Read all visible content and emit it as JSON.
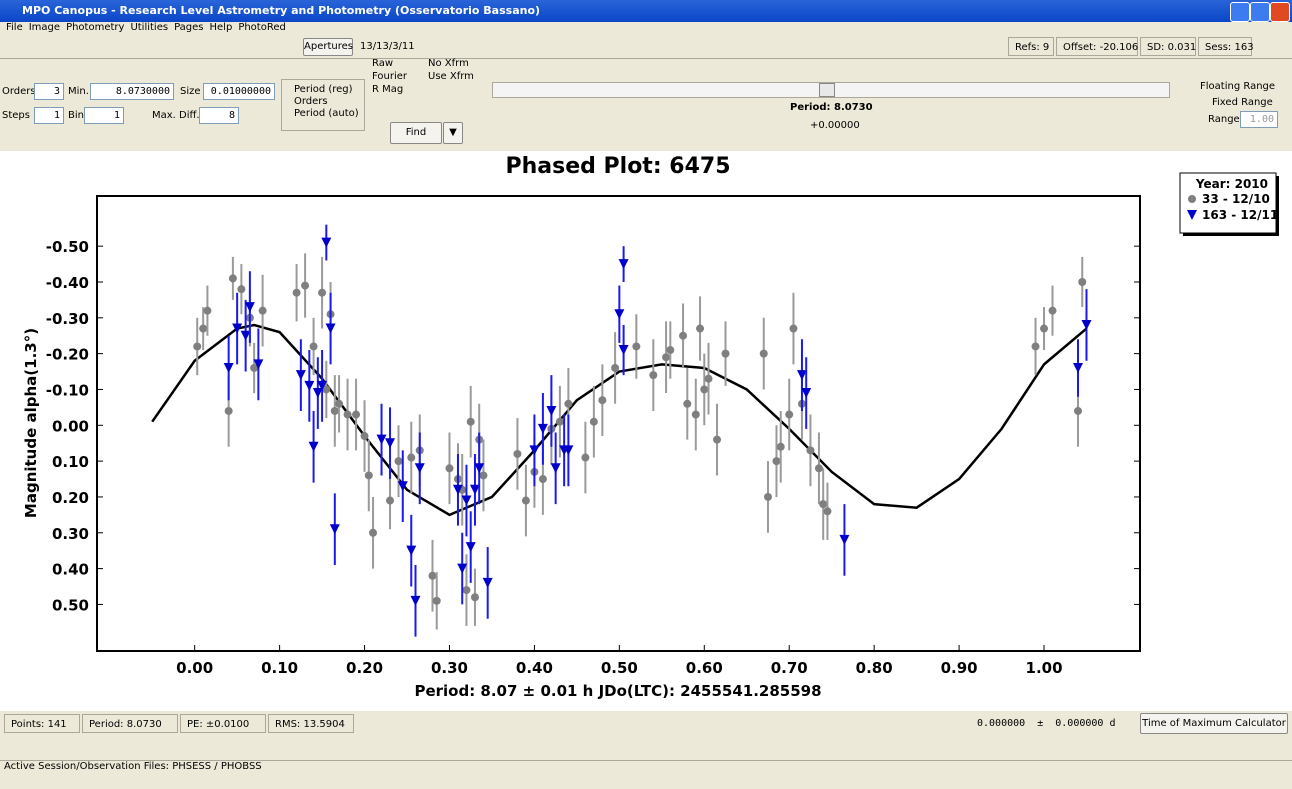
{
  "window": {
    "title": "MPO Canopus - Research Level Astrometry and Photometry (Osservatorio Bassano)"
  },
  "menu": [
    "File",
    "Image",
    "Photometry",
    "Utilities",
    "Pages",
    "Help",
    "PhotoRed"
  ],
  "toolbar": {
    "apertures": "Apertures",
    "session": "13/13/3/11",
    "refs": "Refs: 9",
    "offset": "Offset: -20.106",
    "sd": "SD: 0.031",
    "sess": "Sess: 163"
  },
  "controls": {
    "orders_label": "Orders",
    "orders": "3",
    "min_label": "Min.",
    "min": "8.0730000",
    "size_label": "Size",
    "size": "0.01000000",
    "steps_label": "Steps",
    "steps": "1",
    "bin_label": "Bin",
    "bin": "1",
    "maxdiff_label": "Max. Diff.",
    "maxdiff": "8",
    "radios": [
      "Period (reg)",
      "Orders",
      "Period (auto)"
    ],
    "raw": "Raw",
    "fourier": "Fourier",
    "rmag": "R Mag",
    "noxfrm": "No Xfrm",
    "usexfrm": "Use Xfrm",
    "find": "Find",
    "period": "Period: 8.0730",
    "offset": "+0.00000",
    "floating": "Floating Range",
    "fixed": "Fixed Range",
    "range_label": "Range",
    "range": "1.00"
  },
  "status": {
    "points": "Points: 141",
    "period": "Period: 8.0730",
    "pe": "PE: ±0.0100",
    "rms": "RMS: 13.5904",
    "tmax": "0.000000  ±  0.000000 d",
    "tmax_button": "Time of Maximum Calculator",
    "files": "Active Session/Observation Files: PHSESS / PHOBSS"
  },
  "chart_data": {
    "type": "scatter",
    "title": "Phased Plot: 6475",
    "x_label": "Period: 8.07 ± 0.01 h     JDo(LTC): 2455541.285598",
    "y_label": "Magnitude alpha(1.3°)",
    "xlim": [
      -0.115,
      1.113
    ],
    "ylim": [
      -0.64,
      0.63
    ],
    "y_inverted": true,
    "xticks": [
      {
        "value": 0,
        "label": "0.00"
      },
      {
        "value": 0.1,
        "label": "0.10"
      },
      {
        "value": 0.2,
        "label": "0.20"
      },
      {
        "value": 0.3,
        "label": "0.30"
      },
      {
        "value": 0.4,
        "label": "0.40"
      },
      {
        "value": 0.5,
        "label": "0.50"
      },
      {
        "value": 0.6,
        "label": "0.60"
      },
      {
        "value": 0.7,
        "label": "0.70"
      },
      {
        "value": 0.8,
        "label": "0.80"
      },
      {
        "value": 0.9,
        "label": "0.90"
      },
      {
        "value": 1,
        "label": "1.00"
      }
    ],
    "yticks": [
      {
        "value": -0.5,
        "label": "-0.50"
      },
      {
        "value": -0.4,
        "label": "-0.40"
      },
      {
        "value": -0.3,
        "label": "-0.30"
      },
      {
        "value": -0.2,
        "label": "-0.20"
      },
      {
        "value": -0.1,
        "label": "-0.10"
      },
      {
        "value": 0,
        "label": "0.00"
      },
      {
        "value": 0.1,
        "label": "0.10"
      },
      {
        "value": 0.2,
        "label": "0.20"
      },
      {
        "value": 0.3,
        "label": "0.30"
      },
      {
        "value": 0.4,
        "label": "0.40"
      },
      {
        "value": 0.5,
        "label": "0.50"
      }
    ],
    "legend_title": "Year: 2010",
    "legend": "upper right",
    "fit": {
      "color": "#000000",
      "x": [
        -0.05,
        0,
        0.05,
        0.07,
        0.1,
        0.15,
        0.2,
        0.25,
        0.3,
        0.35,
        0.4,
        0.45,
        0.5,
        0.55,
        0.6,
        0.65,
        0.7,
        0.75,
        0.8,
        0.85,
        0.9,
        0.95,
        1,
        1.05
      ],
      "values": [
        -0.01,
        -0.18,
        -0.27,
        -0.28,
        -0.26,
        -0.13,
        0.03,
        0.18,
        0.25,
        0.2,
        0.07,
        -0.07,
        -0.15,
        -0.17,
        -0.16,
        -0.1,
        0.01,
        0.13,
        0.22,
        0.23,
        0.15,
        0.01,
        -0.17,
        -0.27
      ]
    },
    "series": [
      {
        "name": "33 - 12/10",
        "color": "#7f7f7f",
        "error_color": "#9a9a9a",
        "marker": "circle",
        "x": [
          0.003,
          0.01,
          0.015,
          0.04,
          0.045,
          0.055,
          0.065,
          0.07,
          0.08,
          0.12,
          0.13,
          0.14,
          0.15,
          0.155,
          0.16,
          0.165,
          0.17,
          0.18,
          0.19,
          0.2,
          0.205,
          0.21,
          0.23,
          0.24,
          0.255,
          0.265,
          0.28,
          0.285,
          0.3,
          0.31,
          0.315,
          0.32,
          0.325,
          0.33,
          0.335,
          0.34,
          0.38,
          0.39,
          0.4,
          0.41,
          0.42,
          0.43,
          0.44,
          0.46,
          0.47,
          0.48,
          0.495,
          0.52,
          0.54,
          0.555,
          0.56,
          0.575,
          0.58,
          0.59,
          0.595,
          0.6,
          0.605,
          0.615,
          0.625,
          0.67,
          0.675,
          0.685,
          0.69,
          0.7,
          0.705,
          0.715,
          0.725,
          0.735,
          0.74,
          0.745,
          0.99,
          1,
          1.01,
          1.04,
          1.045
        ],
        "values": [
          -0.22,
          -0.27,
          -0.32,
          -0.04,
          -0.41,
          -0.38,
          -0.3,
          -0.16,
          -0.32,
          -0.37,
          -0.39,
          -0.22,
          -0.37,
          -0.1,
          -0.31,
          -0.04,
          -0.06,
          -0.03,
          -0.03,
          0.03,
          0.14,
          0.3,
          0.21,
          0.1,
          0.09,
          0.07,
          0.42,
          0.49,
          0.12,
          0.15,
          0.18,
          0.46,
          -0.01,
          0.48,
          0.04,
          0.14,
          0.08,
          0.21,
          0.13,
          0.15,
          0.01,
          -0.01,
          -0.06,
          0.09,
          -0.01,
          -0.07,
          -0.16,
          -0.22,
          -0.14,
          -0.19,
          -0.21,
          -0.25,
          -0.06,
          -0.03,
          -0.27,
          -0.1,
          -0.13,
          0.04,
          -0.2,
          -0.2,
          0.2,
          0.1,
          0.06,
          -0.03,
          -0.27,
          -0.06,
          0.07,
          0.12,
          0.22,
          0.24,
          -0.22,
          -0.27,
          -0.32,
          -0.04,
          -0.4
        ],
        "errors": [
          0.08,
          0.06,
          0.07,
          0.1,
          0.06,
          0.07,
          0.08,
          0.07,
          0.1,
          0.08,
          0.09,
          0.08,
          0.1,
          0.08,
          0.09,
          0.1,
          0.08,
          0.1,
          0.1,
          0.1,
          0.1,
          0.1,
          0.08,
          0.1,
          0.1,
          0.1,
          0.1,
          0.08,
          0.1,
          0.1,
          0.1,
          0.1,
          0.1,
          0.08,
          0.1,
          0.1,
          0.1,
          0.1,
          0.1,
          0.1,
          0.1,
          0.1,
          0.1,
          0.1,
          0.1,
          0.1,
          0.1,
          0.09,
          0.1,
          0.1,
          0.08,
          0.09,
          0.1,
          0.1,
          0.09,
          0.1,
          0.1,
          0.1,
          0.09,
          0.1,
          0.1,
          0.1,
          0.1,
          0.1,
          0.1,
          0.1,
          0.1,
          0.1,
          0.1,
          0.08,
          0.08,
          0.06,
          0.07,
          0.1,
          0.07
        ]
      },
      {
        "name": "163 - 12/11",
        "color": "#0000cc",
        "error_color": "#1a1aee",
        "marker": "triangle-down",
        "x": [
          0.04,
          0.05,
          0.06,
          0.065,
          0.075,
          0.125,
          0.135,
          0.14,
          0.145,
          0.15,
          0.155,
          0.16,
          0.165,
          0.22,
          0.23,
          0.245,
          0.255,
          0.26,
          0.265,
          0.31,
          0.315,
          0.32,
          0.325,
          0.33,
          0.335,
          0.345,
          0.4,
          0.41,
          0.42,
          0.425,
          0.435,
          0.44,
          0.5,
          0.505,
          0.505,
          0.715,
          0.72,
          0.765,
          1.04,
          1.05
        ],
        "values": [
          -0.16,
          -0.27,
          -0.25,
          -0.33,
          -0.17,
          -0.14,
          -0.11,
          0.06,
          -0.09,
          -0.11,
          -0.51,
          -0.27,
          0.29,
          0.04,
          0.05,
          0.17,
          0.35,
          0.49,
          0.12,
          0.18,
          0.4,
          0.21,
          0.34,
          0.18,
          0.12,
          0.44,
          0.07,
          0.01,
          -0.04,
          0.12,
          0.07,
          0.07,
          -0.31,
          -0.45,
          -0.21,
          -0.14,
          -0.09,
          0.32,
          -0.16,
          -0.28
        ],
        "errors": [
          0.09,
          0.1,
          0.1,
          0.1,
          0.1,
          0.1,
          0.1,
          0.1,
          0.1,
          0.1,
          0.05,
          0.1,
          0.1,
          0.1,
          0.1,
          0.1,
          0.1,
          0.1,
          0.1,
          0.1,
          0.1,
          0.1,
          0.1,
          0.1,
          0.1,
          0.1,
          0.1,
          0.1,
          0.1,
          0.1,
          0.1,
          0.1,
          0.08,
          0.05,
          0.07,
          0.1,
          0.1,
          0.1,
          0.08,
          0.1
        ]
      }
    ]
  }
}
